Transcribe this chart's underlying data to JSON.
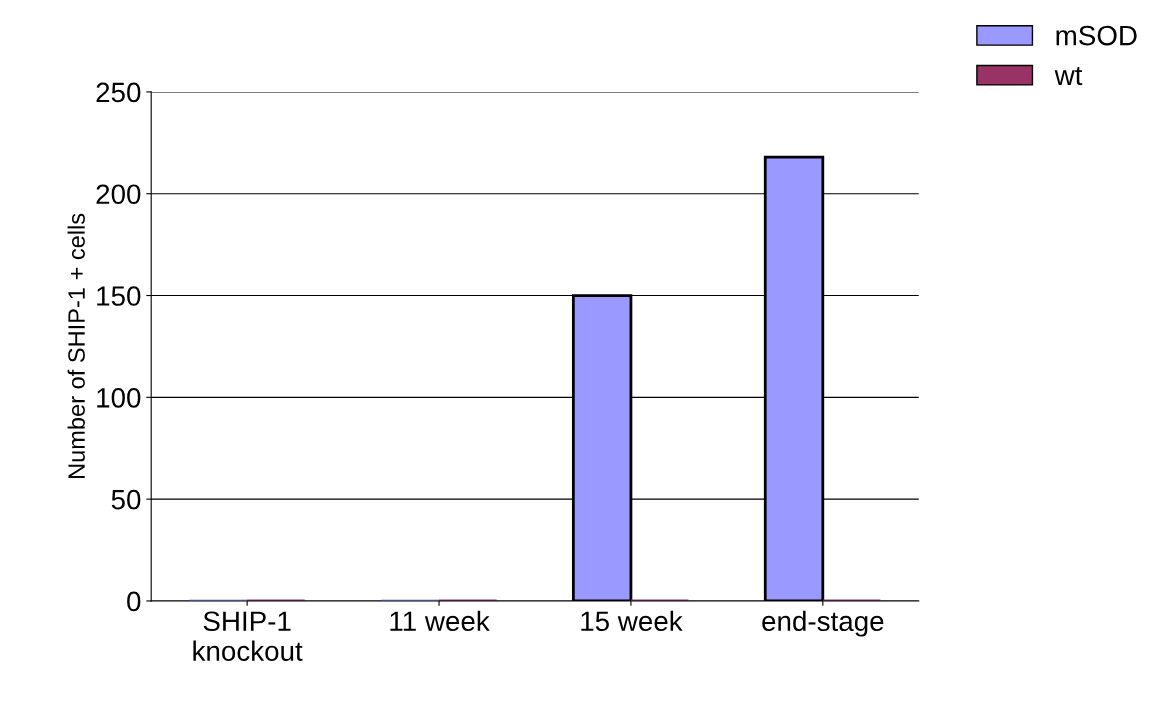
{
  "chart_data": {
    "type": "bar",
    "ylabel": "Number of SHIP-1 + cells",
    "categories": [
      "SHIP-1\nknockout",
      "11 week",
      "15 week",
      "end-stage"
    ],
    "series": [
      {
        "name": "mSOD",
        "color": "#9999ff",
        "values": [
          0,
          0,
          150,
          218
        ]
      },
      {
        "name": "wt",
        "color": "#993366",
        "values": [
          0,
          0,
          0,
          0
        ]
      }
    ],
    "ylim": [
      0,
      250
    ],
    "yticks": [
      0,
      50,
      100,
      150,
      200,
      250
    ],
    "grid": "y",
    "legend": "top right"
  }
}
